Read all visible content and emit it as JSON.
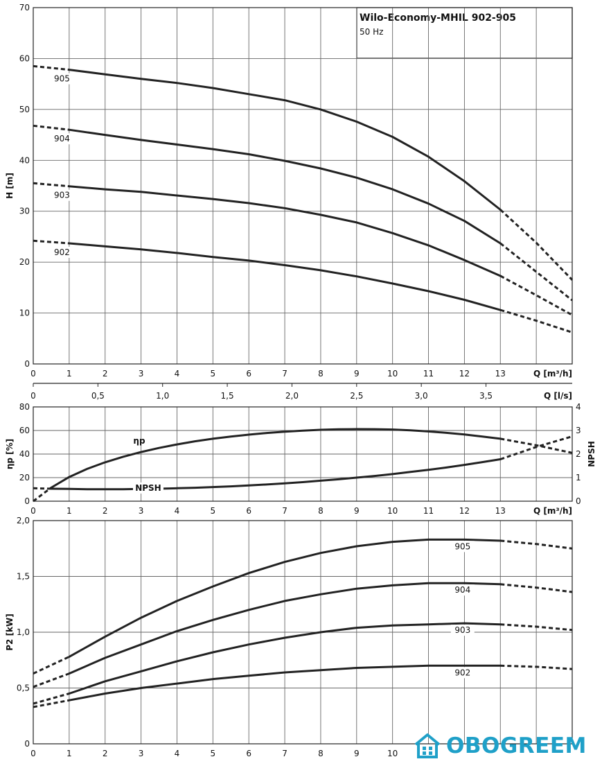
{
  "title_box": {
    "title": "Wilo-Economy-MHIL 902-905",
    "subtitle": "50 Hz"
  },
  "watermark": {
    "text": "OBOGREEM",
    "color": "#1fa0c8"
  },
  "chart_data": [
    {
      "type": "line",
      "xlabel": "Q [m³/h]",
      "ylabel": "H [m]",
      "xlim": [
        0,
        15
      ],
      "ylim": [
        0,
        70
      ],
      "x_ticks": [
        0,
        1,
        2,
        3,
        4,
        5,
        6,
        7,
        8,
        9,
        10,
        11,
        12,
        13
      ],
      "y_ticks": [
        0,
        10,
        20,
        30,
        40,
        50,
        60,
        70
      ],
      "secondary_x_axis": {
        "label": "Q [l/s]",
        "ticks": [
          {
            "value": 0,
            "label": "0"
          },
          {
            "value": 0.5,
            "label": "0,5"
          },
          {
            "value": 1.0,
            "label": "1,0"
          },
          {
            "value": 1.5,
            "label": "1,5"
          },
          {
            "value": 2.0,
            "label": "2,0"
          },
          {
            "value": 2.5,
            "label": "2,5"
          },
          {
            "value": 3.0,
            "label": "3,0"
          },
          {
            "value": 3.5,
            "label": "3,5"
          }
        ]
      },
      "series": [
        {
          "name": "905",
          "solid_range": [
            1,
            13
          ],
          "x": [
            0,
            1,
            2,
            3,
            4,
            5,
            6,
            7,
            8,
            9,
            10,
            11,
            12,
            13,
            14,
            15
          ],
          "y": [
            58.5,
            57.8,
            56.9,
            56.0,
            55.2,
            54.2,
            53.0,
            51.8,
            50.0,
            47.6,
            44.6,
            40.7,
            35.9,
            30.3,
            23.8,
            16.5
          ]
        },
        {
          "name": "904",
          "solid_range": [
            1,
            13
          ],
          "x": [
            0,
            1,
            2,
            3,
            4,
            5,
            6,
            7,
            8,
            9,
            10,
            11,
            12,
            13,
            14,
            15
          ],
          "y": [
            46.8,
            46.0,
            45.0,
            44.0,
            43.1,
            42.2,
            41.2,
            39.9,
            38.4,
            36.6,
            34.3,
            31.5,
            28.1,
            23.7,
            18.1,
            12.5
          ]
        },
        {
          "name": "903",
          "solid_range": [
            1,
            13
          ],
          "x": [
            0,
            1,
            2,
            3,
            4,
            5,
            6,
            7,
            8,
            9,
            10,
            11,
            12,
            13,
            14,
            15
          ],
          "y": [
            35.5,
            34.9,
            34.3,
            33.8,
            33.1,
            32.4,
            31.6,
            30.6,
            29.3,
            27.8,
            25.7,
            23.3,
            20.4,
            17.3,
            13.5,
            9.6
          ]
        },
        {
          "name": "902",
          "solid_range": [
            1,
            13
          ],
          "x": [
            0,
            1,
            2,
            3,
            4,
            5,
            6,
            7,
            8,
            9,
            10,
            11,
            12,
            13,
            14,
            15
          ],
          "y": [
            24.2,
            23.7,
            23.1,
            22.5,
            21.8,
            21.0,
            20.3,
            19.4,
            18.4,
            17.2,
            15.8,
            14.3,
            12.6,
            10.6,
            8.5,
            6.2
          ]
        }
      ]
    },
    {
      "type": "line",
      "xlabel": "Q [m³/h]",
      "ylabel": "ηp [%]",
      "y2label": "NPSH",
      "xlim": [
        0,
        15
      ],
      "ylim": [
        0,
        80
      ],
      "y2lim": [
        0,
        4
      ],
      "x_ticks": [
        0,
        1,
        2,
        3,
        4,
        5,
        6,
        7,
        8,
        9,
        10,
        11,
        12,
        13
      ],
      "y_ticks": [
        0,
        20,
        40,
        60,
        80
      ],
      "y2_ticks": [
        0,
        1,
        2,
        3,
        4
      ],
      "series": [
        {
          "name": "ηp",
          "axis": "left",
          "solid_range": [
            0.5,
            13
          ],
          "x": [
            0,
            0.5,
            1,
            1.5,
            2,
            2.5,
            3,
            3.5,
            4,
            4.5,
            5,
            5.5,
            6,
            6.5,
            7,
            7.5,
            8,
            8.5,
            9,
            9.5,
            10,
            10.5,
            11,
            11.5,
            12,
            12.5,
            13,
            14,
            15
          ],
          "y": [
            0,
            11.5,
            20.5,
            27.4,
            33,
            37.7,
            41.7,
            45.2,
            48.2,
            50.8,
            53,
            54.9,
            56.5,
            57.9,
            59,
            59.9,
            60.6,
            61,
            61.2,
            61.1,
            60.8,
            60.1,
            59.2,
            58,
            56.6,
            54.9,
            53,
            47.5,
            41
          ]
        },
        {
          "name": "NPSH",
          "axis": "right",
          "solid_range": [
            0.5,
            13
          ],
          "x": [
            0,
            0.5,
            1,
            1.5,
            2,
            2.5,
            3,
            3.5,
            4,
            4.5,
            5,
            5.5,
            6,
            6.5,
            7,
            7.5,
            8,
            8.5,
            9,
            9.5,
            10,
            10.5,
            11,
            11.5,
            12,
            12.5,
            13,
            14,
            15
          ],
          "y": [
            0.55,
            0.53,
            0.52,
            0.51,
            0.51,
            0.51,
            0.52,
            0.53,
            0.55,
            0.57,
            0.6,
            0.63,
            0.67,
            0.71,
            0.76,
            0.81,
            0.87,
            0.93,
            1.0,
            1.07,
            1.15,
            1.24,
            1.33,
            1.43,
            1.54,
            1.66,
            1.78,
            2.3,
            2.75
          ]
        }
      ]
    },
    {
      "type": "line",
      "xlabel": "",
      "ylabel": "P2 [kW]",
      "xlim": [
        0,
        15
      ],
      "ylim": [
        0,
        2.0
      ],
      "x_ticks": [
        0,
        1,
        2,
        3,
        4,
        5,
        6,
        7,
        8,
        9,
        10
      ],
      "y_ticks": [
        {
          "value": 0,
          "label": "0"
        },
        {
          "value": 0.5,
          "label": "0,5"
        },
        {
          "value": 1.0,
          "label": "1,0"
        },
        {
          "value": 1.5,
          "label": "1,5"
        },
        {
          "value": 2.0,
          "label": "2,0"
        }
      ],
      "series": [
        {
          "name": "905",
          "solid_range": [
            1,
            13
          ],
          "x": [
            0,
            1,
            2,
            3,
            4,
            5,
            6,
            7,
            8,
            9,
            10,
            11,
            12,
            13,
            14,
            15
          ],
          "y": [
            0.63,
            0.78,
            0.96,
            1.13,
            1.28,
            1.41,
            1.53,
            1.63,
            1.71,
            1.77,
            1.81,
            1.83,
            1.83,
            1.82,
            1.79,
            1.75
          ]
        },
        {
          "name": "904",
          "solid_range": [
            1,
            13
          ],
          "x": [
            0,
            1,
            2,
            3,
            4,
            5,
            6,
            7,
            8,
            9,
            10,
            11,
            12,
            13,
            14,
            15
          ],
          "y": [
            0.51,
            0.63,
            0.77,
            0.89,
            1.01,
            1.11,
            1.2,
            1.28,
            1.34,
            1.39,
            1.42,
            1.44,
            1.44,
            1.43,
            1.4,
            1.36
          ]
        },
        {
          "name": "903",
          "solid_range": [
            1,
            13
          ],
          "x": [
            0,
            1,
            2,
            3,
            4,
            5,
            6,
            7,
            8,
            9,
            10,
            11,
            12,
            13,
            14,
            15
          ],
          "y": [
            0.36,
            0.45,
            0.56,
            0.65,
            0.74,
            0.82,
            0.89,
            0.95,
            1.0,
            1.04,
            1.06,
            1.07,
            1.08,
            1.07,
            1.05,
            1.02
          ]
        },
        {
          "name": "902",
          "solid_range": [
            1,
            13
          ],
          "x": [
            0,
            1,
            2,
            3,
            4,
            5,
            6,
            7,
            8,
            9,
            10,
            11,
            12,
            13,
            14,
            15
          ],
          "y": [
            0.33,
            0.39,
            0.45,
            0.5,
            0.54,
            0.58,
            0.61,
            0.64,
            0.66,
            0.68,
            0.69,
            0.7,
            0.7,
            0.7,
            0.69,
            0.67
          ]
        }
      ]
    }
  ]
}
